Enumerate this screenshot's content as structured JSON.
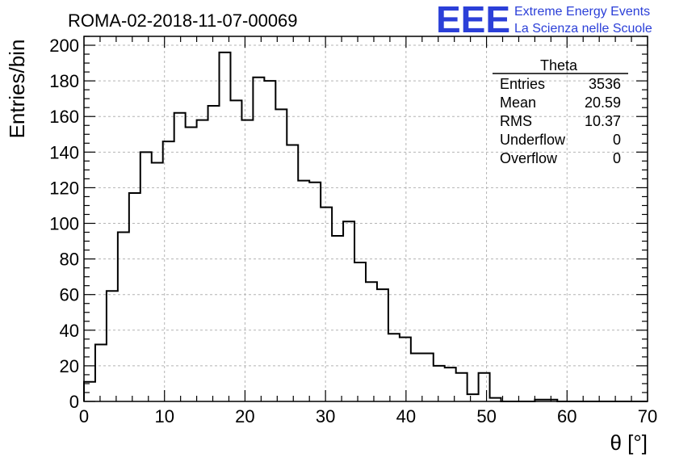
{
  "header": {
    "title": "ROMA-02-2018-11-07-00069",
    "logo_mark": "EEE",
    "logo_line1": "Extreme Energy Events",
    "logo_line2": "La Scienza nelle Scuole",
    "logo_color": "#2b3fd8"
  },
  "stats_box": {
    "name": "Theta",
    "rows": [
      {
        "label": "Entries",
        "value": "3536"
      },
      {
        "label": "Mean",
        "value": "20.59"
      },
      {
        "label": "RMS",
        "value": "10.37"
      },
      {
        "label": "Underflow",
        "value": "0"
      },
      {
        "label": "Overflow",
        "value": "0"
      }
    ]
  },
  "chart_data": {
    "type": "histogram",
    "title": "ROMA-02-2018-11-07-00069",
    "xlabel": "θ [°]",
    "ylabel": "Entries/bin",
    "xlim": [
      0,
      70
    ],
    "ylim": [
      0,
      205
    ],
    "grid": true,
    "bin_width": 1.4,
    "bin_start": 0,
    "xticks": [
      0,
      10,
      20,
      30,
      40,
      50,
      60,
      70
    ],
    "yticks": [
      0,
      20,
      40,
      60,
      80,
      100,
      120,
      140,
      160,
      180,
      200
    ],
    "values": [
      11,
      32,
      62,
      95,
      117,
      140,
      134,
      146,
      162,
      154,
      158,
      166,
      196,
      169,
      158,
      182,
      180,
      164,
      144,
      124,
      123,
      109,
      93,
      101,
      78,
      67,
      63,
      38,
      36,
      27,
      27,
      20,
      19,
      16,
      4,
      16,
      2,
      0,
      0,
      0,
      1,
      1,
      0,
      0,
      0,
      0,
      0,
      0,
      0,
      0
    ]
  }
}
